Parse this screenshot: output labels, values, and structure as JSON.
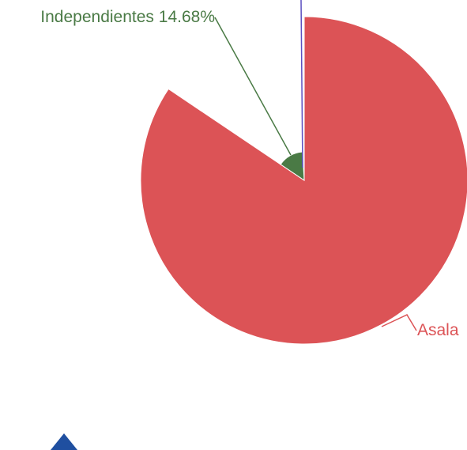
{
  "chart_data": {
    "type": "pie",
    "rose_type": "radius",
    "categories": [
      "Asala",
      "Independientes",
      null
    ],
    "values": [
      84.42,
      14.68,
      0.9
    ],
    "value_labels": [
      null,
      "14.68%",
      null
    ],
    "colors": [
      "#dc5356",
      "#4a7a45",
      "#5b4fc0"
    ]
  }
}
